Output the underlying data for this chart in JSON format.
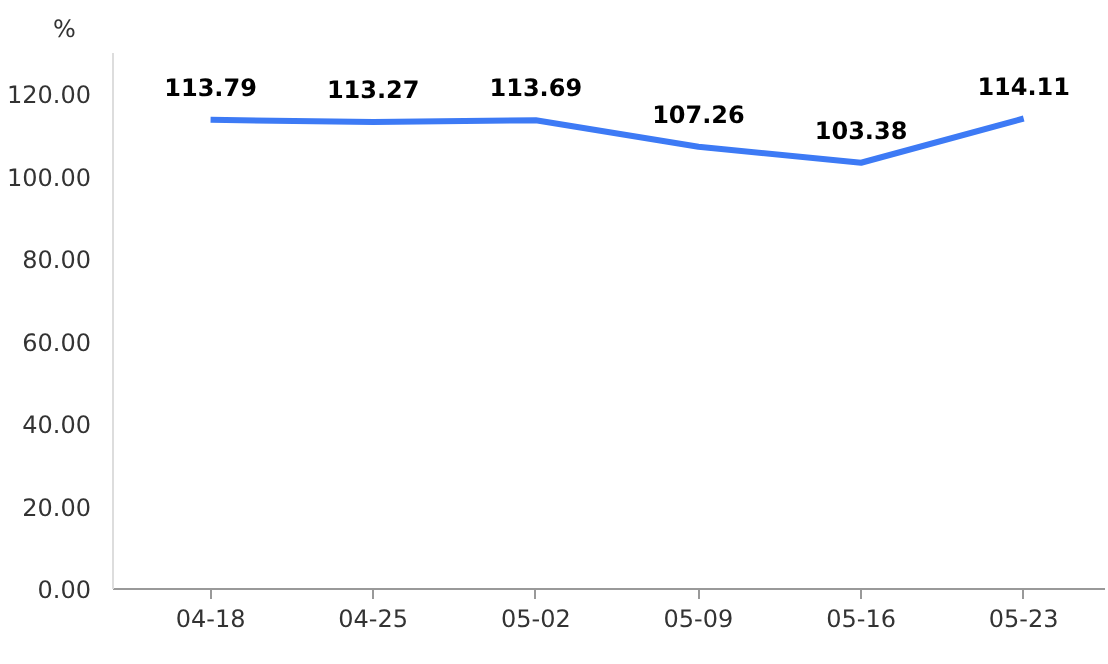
{
  "chart_data": {
    "type": "line",
    "ylabel": "%",
    "categories": [
      "04-18",
      "04-25",
      "05-02",
      "05-09",
      "05-16",
      "05-23"
    ],
    "series": [
      {
        "color": "#3d7af5",
        "values": [
          113.79,
          113.27,
          113.69,
          107.26,
          103.38,
          114.11
        ]
      }
    ],
    "ylim": [
      0,
      130
    ],
    "yticks": [
      {
        "value": 0,
        "label": "0.00"
      },
      {
        "value": 20,
        "label": "20.00"
      },
      {
        "value": 40,
        "label": "40.00"
      },
      {
        "value": 60,
        "label": "60.00"
      },
      {
        "value": 80,
        "label": "80.00"
      },
      {
        "value": 100,
        "label": "100.00"
      },
      {
        "value": 120,
        "label": "120.00"
      }
    ],
    "grid": false,
    "data_labels": true,
    "marker": "none",
    "line_style": "solid"
  }
}
